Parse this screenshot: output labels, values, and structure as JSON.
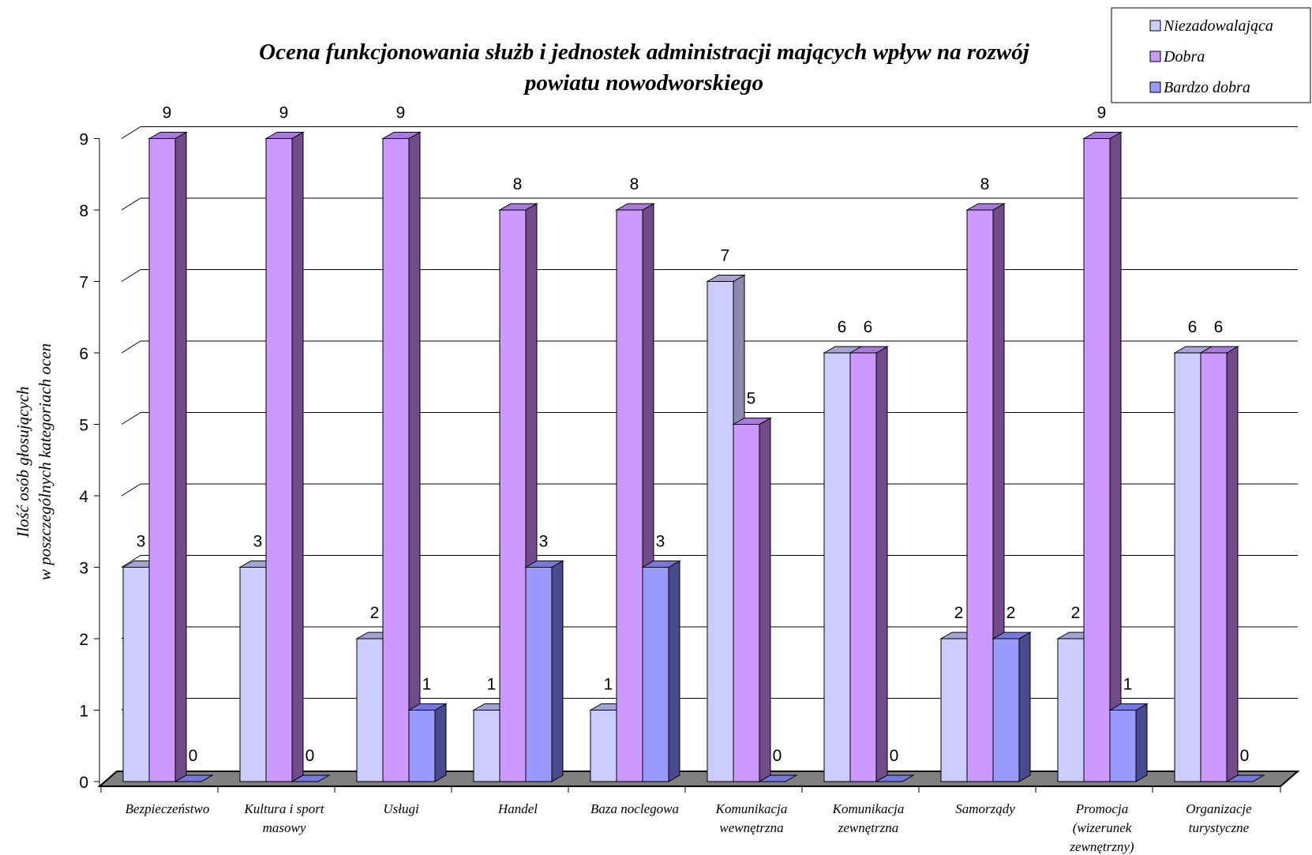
{
  "chart_data": {
    "type": "bar",
    "title_lines": [
      "Ocena funkcjonowania służb i jednostek administracji mających wpływ na rozwój",
      "powiatu nowodworskiego"
    ],
    "ylabel_lines": [
      "Ilość osób głosujących",
      "w poszczególnych kategoriach ocen"
    ],
    "ylim": [
      0,
      9
    ],
    "yticks": [
      "0",
      "1",
      "2",
      "3",
      "4",
      "5",
      "6",
      "7",
      "8",
      "9"
    ],
    "grid": true,
    "legend_position": "top-right",
    "categories": [
      [
        "Bezpieczeństwo"
      ],
      [
        "Kultura i sport",
        "masowy"
      ],
      [
        "Usługi"
      ],
      [
        "Handel"
      ],
      [
        "Baza noclegowa"
      ],
      [
        "Komunikacja",
        "wewnętrzna"
      ],
      [
        "Komunikacja",
        "zewnętrzna"
      ],
      [
        "Samorządy"
      ],
      [
        "Promocja",
        "(wizerunek",
        "zewnętrzny)"
      ],
      [
        "Organizacje",
        "turystyczne"
      ]
    ],
    "series": [
      {
        "name": "Niezadowalająca",
        "color": "#ccccff",
        "side": "#8a8ab0",
        "top": "#a3a3d6",
        "values": [
          3,
          3,
          2,
          1,
          1,
          7,
          6,
          2,
          2,
          6
        ]
      },
      {
        "name": "Dobra",
        "color": "#cc99ff",
        "side": "#6f4b8a",
        "top": "#a97ad9",
        "values": [
          9,
          9,
          9,
          8,
          8,
          5,
          6,
          8,
          9,
          6
        ]
      },
      {
        "name": "Bardzo dobra",
        "color": "#9999ff",
        "side": "#4a4a8f",
        "top": "#7777dd",
        "values": [
          0,
          0,
          1,
          3,
          3,
          0,
          0,
          2,
          1,
          0
        ]
      }
    ],
    "data_labels": [
      [
        "3",
        "9",
        "0"
      ],
      [
        "3",
        "9",
        "0"
      ],
      [
        "2",
        "9",
        "1"
      ],
      [
        "1",
        "8",
        "3"
      ],
      [
        "1",
        "8",
        "3"
      ],
      [
        "7",
        "5",
        "0"
      ],
      [
        "6",
        "6",
        "0"
      ],
      [
        "2",
        "8",
        "2"
      ],
      [
        "2",
        "9",
        "1"
      ],
      [
        "6",
        "6",
        "0"
      ]
    ]
  }
}
